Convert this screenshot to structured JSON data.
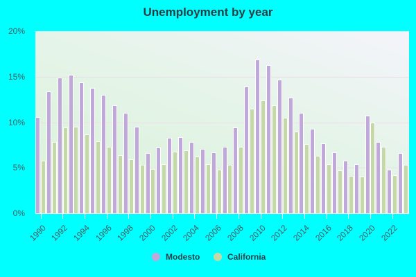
{
  "title": "Unemployment by year",
  "watermark": "City-Data.com",
  "colors": {
    "background": "#00FFFF",
    "modesto": "#C0A8DA",
    "california": "#C5D8A8"
  },
  "legend": [
    {
      "label": "Modesto",
      "color": "#C0A8DA"
    },
    {
      "label": "California",
      "color": "#C5D8A8"
    }
  ],
  "chart_data": {
    "type": "bar",
    "title": "Unemployment by year",
    "xlabel": "",
    "ylabel": "",
    "ylim": [
      0,
      20
    ],
    "y_ticks": [
      "0%",
      "5%",
      "10%",
      "15%",
      "20%"
    ],
    "x_tick_labels": [
      "1990",
      "1992",
      "1994",
      "1996",
      "1998",
      "2000",
      "2002",
      "2004",
      "2006",
      "2008",
      "2010",
      "2012",
      "2014",
      "2016",
      "2018",
      "2020",
      "2022"
    ],
    "grid": true,
    "legend_position": "bottom",
    "categories": [
      "1990",
      "1991",
      "1992",
      "1993",
      "1994",
      "1995",
      "1996",
      "1997",
      "1998",
      "1999",
      "2000",
      "2001",
      "2002",
      "2003",
      "2004",
      "2005",
      "2006",
      "2007",
      "2008",
      "2009",
      "2010",
      "2011",
      "2012",
      "2013",
      "2014",
      "2015",
      "2016",
      "2017",
      "2018",
      "2019",
      "2020",
      "2021",
      "2022",
      "2023"
    ],
    "series": [
      {
        "name": "Modesto",
        "values": [
          10.6,
          13.4,
          14.9,
          15.2,
          14.4,
          13.8,
          13.0,
          11.9,
          11.0,
          9.5,
          6.6,
          7.2,
          8.3,
          8.4,
          7.8,
          7.1,
          6.7,
          7.3,
          9.4,
          13.9,
          16.9,
          16.3,
          14.7,
          12.7,
          11.0,
          9.3,
          7.7,
          6.7,
          5.8,
          5.4,
          10.7,
          7.8,
          4.8,
          6.6
        ]
      },
      {
        "name": "California",
        "values": [
          5.8,
          7.8,
          9.4,
          9.5,
          8.7,
          7.9,
          7.3,
          6.4,
          5.9,
          5.3,
          4.9,
          5.4,
          6.8,
          6.9,
          6.2,
          5.4,
          4.8,
          5.3,
          7.3,
          11.5,
          12.4,
          11.9,
          10.5,
          9.0,
          7.6,
          6.3,
          5.4,
          4.7,
          4.1,
          4.0,
          10.0,
          7.3,
          4.2,
          5.3
        ]
      }
    ]
  }
}
